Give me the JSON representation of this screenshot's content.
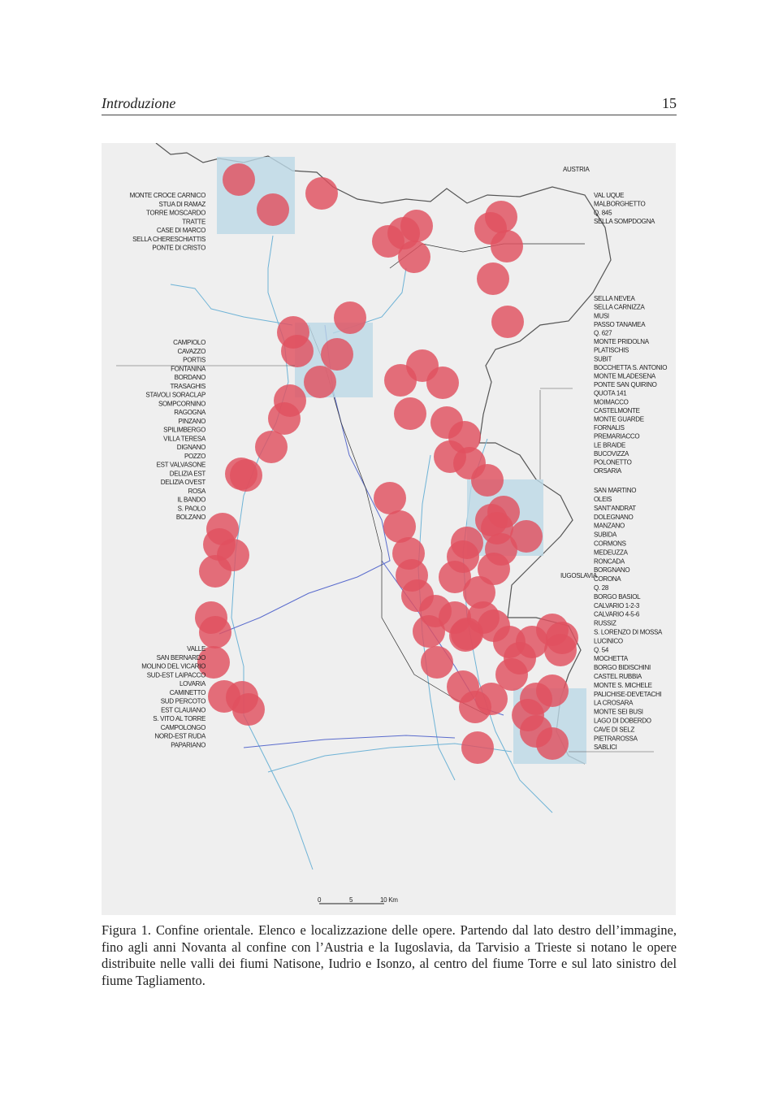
{
  "header": {
    "title": "Introduzione",
    "page_number": "15"
  },
  "figure": {
    "map_labels": {
      "austria": "AUSTRIA",
      "iugoslavia": "IUGOSLAVIA",
      "scale": [
        "0",
        "5",
        "10 Km"
      ]
    },
    "left_groups": [
      [
        "MONTE CROCE CARNICO",
        "STUA DI RAMAZ",
        "TORRE MOSCARDO",
        "TRATTE",
        "CASE DI MARCO",
        "SELLA CHERESCHIATTIS",
        "PONTE DI CRISTO"
      ],
      [
        "CAMPIOLO",
        "CAVAZZO",
        "PORTIS",
        "FONTANINA",
        "BORDANO",
        "TRASAGHIS",
        "STAVOLI SORACLAP",
        "SOMPCORNINO",
        "RAGOGNA",
        "PINZANO",
        "SPILIMBERGO",
        "VILLA TERESA",
        "DIGNANO",
        "POZZO",
        "EST VALVASONE",
        "DELIZIA EST",
        "DELIZIA OVEST",
        "ROSA",
        "IL BANDO",
        "S. PAOLO",
        "BOLZANO"
      ],
      [
        "VALLE",
        "SAN BERNARDO",
        "MOLINO DEL VICARIO",
        "SUD-EST LAIPACCO",
        "LOVARIA",
        "CAMINETTO",
        "SUD PERCOTO",
        "EST CLAUIANO",
        "S. VITO AL TORRE",
        "CAMPOLONGO",
        "NORD-EST RUDA",
        "PAPARIANO"
      ]
    ],
    "right_groups": [
      [
        "VAL UQUE",
        "MALBORGHETTO",
        "Q. 845",
        "SELLA SOMPDOGNA"
      ],
      [
        "SELLA NEVEA",
        "SELLA CARNIZZA",
        "MUSI",
        "PASSO TANAMEA",
        "Q. 627",
        "MONTE PRIDOLNA",
        "PLATISCHIS",
        "SUBIT",
        "BOCCHETTA S. ANTONIO",
        "MONTE MLADESENA",
        "PONTE SAN QUIRINO",
        "QUOTA 141",
        "MOIMACCO",
        "CASTELMONTE",
        "MONTE GUARDE",
        "FORNALIS",
        "PREMARIACCO",
        "LE BRAIDE",
        "BUCOVIZZA",
        "POLONETTO",
        "ORSARIA"
      ],
      [
        "SAN MARTINO",
        "OLEIS",
        "SANT'ANDRAT",
        "DOLEGNANO",
        "MANZANO",
        "SUBIDA",
        "CORMONS",
        "MEDEUZZA",
        "RONCADA",
        "BORGNANO",
        "CORONA",
        "Q. 28",
        "BORGO BASIOL",
        "CALVARIO 1-2-3",
        "CALVARIO 4-5-6",
        "RUSSIZ",
        "S. LORENZO DI MOSSA",
        "LUCINICO",
        "Q. 54",
        "MOCHETTA",
        "BORGO BIDISCHINI",
        "CASTEL RUBBIA",
        "MONTE S. MICHELE",
        "PALICHISE-DEVETACHI",
        "LA CROSARA",
        "MONTE SEI BUSI",
        "LAGO DI DOBERDO",
        "CAVE DI SELZ",
        "PIETRAROSSA",
        "SABLICI"
      ]
    ],
    "caption": "Figura 1. Confine orientale. Elenco e localizzazione delle opere. Partendo dal lato destro dell’immagine, fino agli anni Novanta al confine con l’Austria e la Iugoslavia, da Tarvisio a Trieste si notano le opere distribuite nelle valli dei fiumi Natisone, Iudrio e Isonzo, al centro del fiume Torre e sul lato sinistro del fiume Tagliamento."
  }
}
